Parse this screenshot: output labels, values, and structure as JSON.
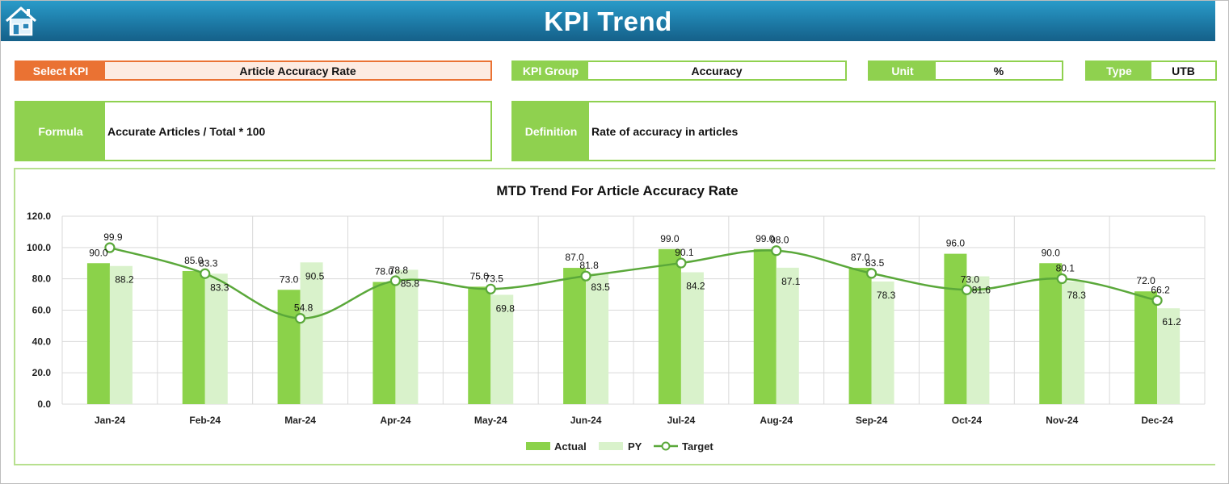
{
  "header": {
    "title": "KPI Trend",
    "home_icon": "home-icon"
  },
  "select_kpi": {
    "label": "Select KPI",
    "value": "Article Accuracy Rate"
  },
  "kpi_group": {
    "label": "KPI Group",
    "value": "Accuracy"
  },
  "unit": {
    "label": "Unit",
    "value": "%"
  },
  "type": {
    "label": "Type",
    "value": "UTB"
  },
  "formula": {
    "label": "Formula",
    "value": "Accurate Articles / Total * 100"
  },
  "definition": {
    "label": "Definition",
    "value": "Rate of accuracy in articles"
  },
  "colors": {
    "accent_green": "#8fd14f",
    "actual": "#8bd24a",
    "py": "#d9f2cb",
    "target": "#5aa83a",
    "select_orange": "#ea7233",
    "header_blue": "#1d7aa6"
  },
  "chart_data": {
    "type": "bar",
    "title": "MTD Trend For Article Accuracy Rate",
    "categories": [
      "Jan-24",
      "Feb-24",
      "Mar-24",
      "Apr-24",
      "May-24",
      "Jun-24",
      "Jul-24",
      "Aug-24",
      "Sep-24",
      "Oct-24",
      "Nov-24",
      "Dec-24"
    ],
    "series": [
      {
        "name": "Actual",
        "kind": "bar",
        "values": [
          90.0,
          85.0,
          73.0,
          78.0,
          75.0,
          87.0,
          99.0,
          99.0,
          87.0,
          96.0,
          90.0,
          72.0
        ]
      },
      {
        "name": "PY",
        "kind": "bar",
        "values": [
          88.2,
          83.3,
          90.5,
          85.8,
          69.8,
          83.5,
          84.2,
          87.1,
          78.3,
          81.6,
          78.3,
          61.2
        ]
      },
      {
        "name": "Target",
        "kind": "line",
        "values": [
          99.9,
          83.3,
          54.8,
          78.8,
          73.5,
          81.8,
          90.1,
          98.0,
          83.5,
          73.0,
          80.1,
          66.2
        ]
      }
    ],
    "y_ticks": [
      "0.0",
      "20.0",
      "40.0",
      "60.0",
      "80.0",
      "100.0",
      "120.0"
    ],
    "ylim": [
      0,
      120
    ],
    "grid": true,
    "legend": "bottom",
    "xlabel": "",
    "ylabel": ""
  }
}
